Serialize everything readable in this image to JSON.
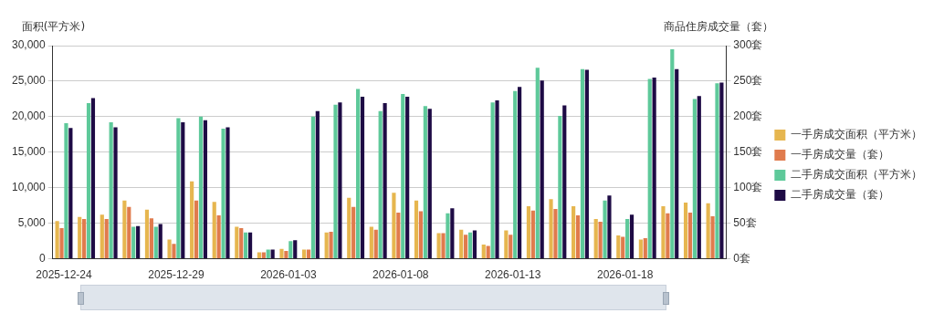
{
  "chart_data": {
    "type": "bar",
    "ylabel": "面积(平方米)",
    "y2label": "商品住房成交量（套）",
    "categories": [
      "2025-12-24",
      null,
      null,
      null,
      null,
      "2025-12-29",
      null,
      null,
      null,
      null,
      "2026-01-03",
      null,
      null,
      null,
      null,
      "2026-01-08",
      null,
      null,
      null,
      null,
      "2026-01-13",
      null,
      null,
      null,
      null,
      "2026-01-18",
      null,
      null,
      null,
      null
    ],
    "series": [
      {
        "name": "一手房成交面积（平方米）",
        "color": "#e6b64f",
        "values": [
          5300,
          5900,
          6200,
          8200,
          6900,
          2700,
          10900,
          8000,
          4500,
          900,
          1400,
          1300,
          3700,
          8600,
          4500,
          9300,
          8200,
          3600,
          4100,
          2000,
          4000,
          7400,
          8400,
          7400,
          5600,
          3300,
          2700,
          7400,
          7900,
          7800
        ]
      },
      {
        "name": "一手房成交量（套）",
        "color": "#e07b4d",
        "axis": "y2",
        "values": [
          43,
          56,
          56,
          73,
          57,
          21,
          82,
          61,
          43,
          9,
          11,
          13,
          38,
          73,
          41,
          65,
          67,
          36,
          34,
          18,
          34,
          68,
          70,
          61,
          52,
          31,
          29,
          64,
          65,
          60
        ]
      },
      {
        "name": "二手房成交面积（平方米）",
        "color": "#5ec99a",
        "values": [
          19100,
          21900,
          19200,
          4500,
          4500,
          19800,
          20000,
          18300,
          3700,
          1300,
          2500,
          20000,
          21700,
          23900,
          20800,
          23200,
          21500,
          6400,
          3700,
          22000,
          23600,
          26900,
          20100,
          26700,
          8200,
          5600,
          25300,
          29500,
          22500,
          24700
        ]
      },
      {
        "name": "二手房成交量（套）",
        "color": "#1e0b45",
        "axis": "y2",
        "values": [
          184,
          226,
          185,
          46,
          49,
          192,
          195,
          185,
          37,
          13,
          26,
          208,
          220,
          228,
          219,
          228,
          211,
          71,
          40,
          223,
          242,
          251,
          216,
          266,
          89,
          62,
          255,
          267,
          229,
          248
        ]
      }
    ],
    "ylim": [
      0,
      30000
    ],
    "yticks": [
      0,
      {
        "value": 5000,
        "label": "5,000"
      },
      {
        "value": 10000,
        "label": "10,000"
      },
      {
        "value": 15000,
        "label": "15,000"
      },
      {
        "value": 20000,
        "label": "20,000"
      },
      {
        "value": 25000,
        "label": "25,000"
      },
      {
        "value": 30000,
        "label": "30,000"
      }
    ],
    "y2lim": [
      0,
      300
    ],
    "y2ticks": [
      {
        "value": 0,
        "label": "0套"
      },
      {
        "value": 50,
        "label": "50套"
      },
      {
        "value": 100,
        "label": "100套"
      },
      {
        "value": 150,
        "label": "150套"
      },
      {
        "value": 200,
        "label": "200套"
      },
      {
        "value": 250,
        "label": "250套"
      },
      {
        "value": 300,
        "label": "300套"
      }
    ],
    "grid": "y",
    "legend": "right"
  }
}
